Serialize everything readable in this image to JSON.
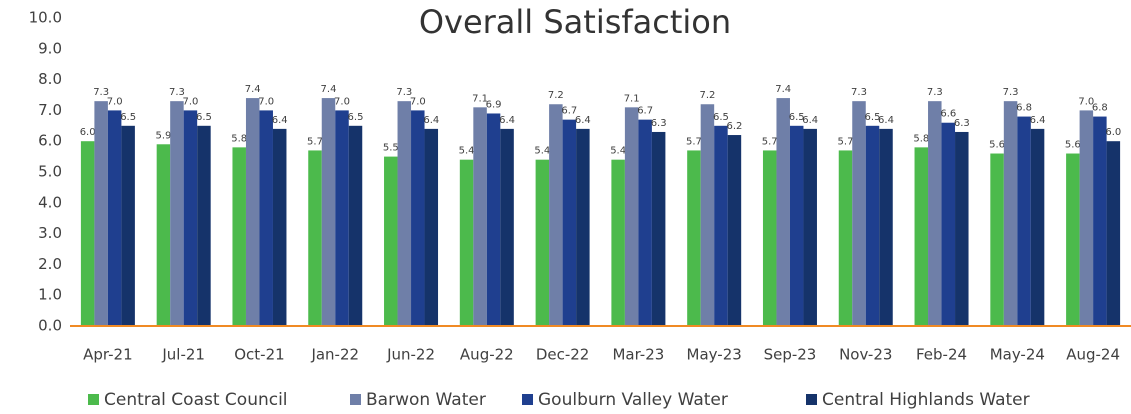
{
  "chart_data": {
    "type": "bar",
    "title": "Overall Satisfaction",
    "categories": [
      "Apr-21",
      "Jul-21",
      "Oct-21",
      "Jan-22",
      "Jun-22",
      "Aug-22",
      "Dec-22",
      "Mar-23",
      "May-23",
      "Sep-23",
      "Nov-23",
      "Feb-24",
      "May-24",
      "Aug-24"
    ],
    "series": [
      {
        "name": "Central Coast Council",
        "color": "#4cba4c",
        "values": [
          6.0,
          5.9,
          5.8,
          5.7,
          5.5,
          5.4,
          5.4,
          5.4,
          5.7,
          5.7,
          5.7,
          5.8,
          5.6,
          5.6
        ],
        "value_labels": [
          "6.0",
          "5.9",
          "5.8",
          "5.7",
          "5.5",
          "5.4",
          "5.4",
          "5.4",
          "5.7",
          "5.7",
          "5.7",
          "5.8",
          "5.6",
          "5.6"
        ]
      },
      {
        "name": "Barwon Water",
        "color": "#6f7fa8",
        "values": [
          7.3,
          7.3,
          7.4,
          7.4,
          7.3,
          7.1,
          7.2,
          7.1,
          7.2,
          7.4,
          7.3,
          7.3,
          7.3,
          7.0
        ],
        "value_labels": [
          "7.3",
          "7.3",
          "7.4",
          "7.4",
          "7.3",
          "7.1",
          "7.2",
          "7.1",
          "7.2",
          "7.4",
          "7.3",
          "7.3",
          "7.3",
          "7.0"
        ]
      },
      {
        "name": "Goulburn Valley Water",
        "color": "#1f3f8f",
        "values": [
          7.0,
          7.0,
          7.0,
          7.0,
          7.0,
          6.9,
          6.7,
          6.7,
          6.5,
          6.5,
          6.5,
          6.6,
          6.8,
          6.8
        ],
        "value_labels": [
          "7.0",
          "7.0",
          "7.0",
          "7.0",
          "7.0",
          "6.9",
          "6.7",
          "6.7",
          "6.5",
          "6.5",
          "6.5",
          "6.6",
          "6.8",
          "6.8"
        ]
      },
      {
        "name": "Central Highlands Water",
        "color": "#15336a",
        "values": [
          6.5,
          6.5,
          6.4,
          6.5,
          6.4,
          6.4,
          6.4,
          6.3,
          6.2,
          6.4,
          6.4,
          6.3,
          6.4,
          6.0
        ],
        "value_labels": [
          "6.5",
          "6.5",
          "6.4",
          "6.5",
          "6.4",
          "6.4",
          "6.4",
          "6.3",
          "6.2",
          "6.4",
          "6.4",
          "6.3",
          "6.4",
          "6.0"
        ]
      }
    ],
    "ylim": [
      0,
      10
    ],
    "yticks": [
      {
        "value": 0,
        "label": "0.0"
      },
      {
        "value": 1,
        "label": "1.0"
      },
      {
        "value": 2,
        "label": "2.0"
      },
      {
        "value": 3,
        "label": "3.0"
      },
      {
        "value": 4,
        "label": "4.0"
      },
      {
        "value": 5,
        "label": "5.0"
      },
      {
        "value": 6,
        "label": "6.0"
      },
      {
        "value": 7,
        "label": "7.0"
      },
      {
        "value": 8,
        "label": "8.0"
      },
      {
        "value": 9,
        "label": "9.0"
      },
      {
        "value": 10,
        "label": "10.0"
      }
    ],
    "grid": false,
    "legend": "bottom"
  }
}
